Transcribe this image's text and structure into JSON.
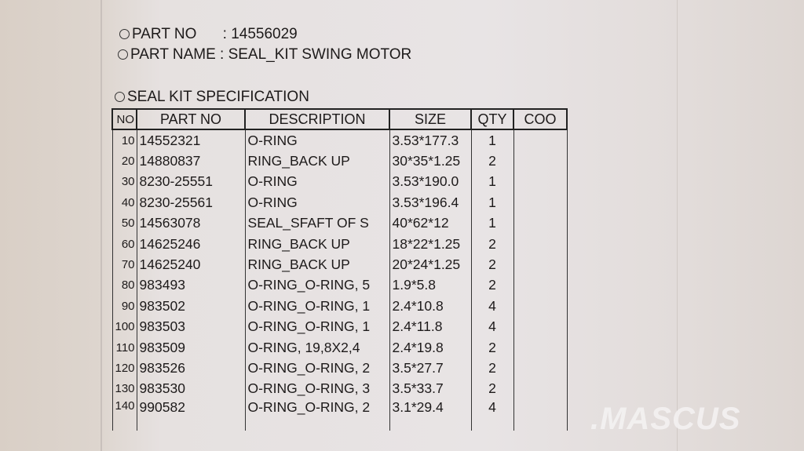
{
  "header": {
    "part_no_label": "PART NO",
    "part_no_value": ": 14556029",
    "part_name_label": "PART NAME",
    "part_name_value": ": SEAL_KIT SWING MOTOR",
    "spec_title": "SEAL KIT SPECIFICATION"
  },
  "table": {
    "columns": [
      "NO",
      "PART NO",
      "DESCRIPTION",
      "SIZE",
      "QTY",
      "COO"
    ],
    "rows": [
      [
        "10",
        "14552321",
        "O-RING",
        "3.53*177.3",
        "1",
        ""
      ],
      [
        "20",
        "14880837",
        "RING_BACK UP",
        "30*35*1.25",
        "2",
        ""
      ],
      [
        "30",
        "8230-25551",
        "O-RING",
        "3.53*190.0",
        "1",
        ""
      ],
      [
        "40",
        "8230-25561",
        "O-RING",
        "3.53*196.4",
        "1",
        ""
      ],
      [
        "50",
        "14563078",
        "SEAL_SFAFT OF S",
        "40*62*12",
        "1",
        ""
      ],
      [
        "60",
        "14625246",
        "RING_BACK UP",
        "18*22*1.25",
        "2",
        ""
      ],
      [
        "70",
        "14625240",
        "RING_BACK UP",
        "20*24*1.25",
        "2",
        ""
      ],
      [
        "80",
        "983493",
        "O-RING_O-RING, 5",
        "1.9*5.8",
        "2",
        ""
      ],
      [
        "90",
        "983502",
        "O-RING_O-RING, 1",
        "2.4*10.8",
        "4",
        ""
      ],
      [
        "100",
        "983503",
        "O-RING_O-RING, 1",
        "2.4*11.8",
        "4",
        ""
      ],
      [
        "110",
        "983509",
        "O-RING, 19,8X2,4",
        "2.4*19.8",
        "2",
        ""
      ],
      [
        "120",
        "983526",
        "O-RING_O-RING, 2",
        "3.5*27.7",
        "2",
        ""
      ],
      [
        "130",
        "983530",
        "O-RING_O-RING, 3",
        "3.5*33.7",
        "2",
        ""
      ],
      [
        "140",
        "990582",
        "O-RING_O-RING, 2",
        "3.1*29.4",
        "4",
        ""
      ]
    ]
  },
  "watermark": ".MASCUS"
}
